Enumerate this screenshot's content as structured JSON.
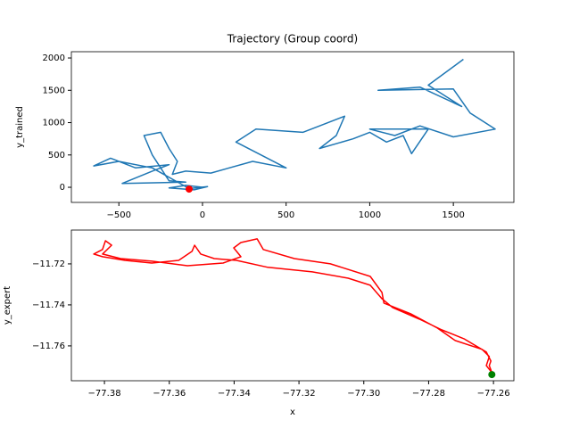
{
  "chart_data": [
    {
      "type": "line",
      "title": "Trajectory (Group coord)",
      "ylabel": "y_trained",
      "xlim": [
        -784,
        1862
      ],
      "ylim": [
        -234,
        2097
      ],
      "xticks": [
        {
          "value": -500,
          "label": "−500"
        },
        0,
        500,
        1000,
        1500
      ],
      "yticks": [
        0,
        500,
        1000,
        1500,
        2000
      ],
      "series": [
        {
          "color": "#1f77b4",
          "marker": "none",
          "x": [
            0,
            -100,
            -200,
            -50,
            30,
            -80,
            -300,
            -500,
            -650,
            -550,
            -400,
            -200,
            -300,
            -480,
            -100,
            -200,
            -300,
            -350,
            -250,
            -200,
            -150,
            -180,
            -100,
            50,
            300,
            500,
            200,
            320,
            600,
            700,
            850,
            800,
            700,
            900,
            1000,
            1100,
            1200,
            1250,
            1350,
            1000,
            1150,
            1300,
            1500,
            1750,
            1600,
            1500,
            1050,
            1300,
            1550,
            1350,
            1560
          ],
          "y": [
            0,
            30,
            -10,
            -40,
            10,
            -20,
            300,
            400,
            330,
            450,
            300,
            350,
            250,
            60,
            80,
            100,
            500,
            800,
            850,
            600,
            400,
            200,
            250,
            220,
            400,
            300,
            700,
            900,
            850,
            950,
            1100,
            800,
            600,
            750,
            850,
            700,
            800,
            520,
            900,
            900,
            800,
            950,
            780,
            900,
            1150,
            1520,
            1500,
            1550,
            1250,
            1580,
            1980
          ]
        },
        {
          "color": "#ff0000",
          "marker": "o",
          "x": [
            -80
          ],
          "y": [
            -28
          ]
        }
      ]
    },
    {
      "type": "line",
      "xlabel": "x",
      "ylabel": "y_expert",
      "xlim": [
        -77.3902,
        -77.2537
      ],
      "ylim": [
        -11.777,
        -11.7035
      ],
      "xticks": [
        {
          "value": -77.38,
          "label": "−77.38"
        },
        {
          "value": -77.36,
          "label": "−77.36"
        },
        {
          "value": -77.34,
          "label": "−77.34"
        },
        {
          "value": -77.32,
          "label": "−77.32"
        },
        {
          "value": -77.3,
          "label": "−77.30"
        },
        {
          "value": -77.28,
          "label": "−77.28"
        },
        {
          "value": -77.26,
          "label": "−77.26"
        }
      ],
      "yticks": [
        {
          "value": -11.72,
          "label": "−11.72"
        },
        {
          "value": -11.74,
          "label": "−11.74"
        },
        {
          "value": -11.76,
          "label": "−11.76"
        }
      ],
      "series": [
        {
          "color": "#ff0000",
          "marker": "none",
          "x": [
            -77.2605,
            -77.2613,
            -77.2608,
            -77.2622,
            -77.2691,
            -77.2759,
            -77.2828,
            -77.2911,
            -77.2944,
            -77.298,
            -77.3048,
            -77.3159,
            -77.3296,
            -77.3393,
            -77.3461,
            -77.3503,
            -77.3522,
            -77.353,
            -77.3571,
            -77.3654,
            -77.3737,
            -77.3806,
            -77.3833,
            -77.3806,
            -77.3797,
            -77.3778,
            -77.3806,
            -77.375,
            -77.3654,
            -77.3544,
            -77.3434,
            -77.3379,
            -77.3401,
            -77.3379,
            -77.3329,
            -77.331,
            -77.3214,
            -77.3103,
            -77.298,
            -77.2944,
            -77.2938,
            -77.2856,
            -77.2773,
            -77.2718,
            -77.2635,
            -77.2613,
            -77.2622,
            -77.2605
          ],
          "y": [
            -11.773,
            -11.7696,
            -11.7674,
            -11.763,
            -11.7565,
            -11.7522,
            -11.747,
            -11.7413,
            -11.737,
            -11.7304,
            -11.727,
            -11.7239,
            -11.7217,
            -11.7183,
            -11.7174,
            -11.7152,
            -11.7109,
            -11.7139,
            -11.7183,
            -11.7196,
            -11.7183,
            -11.7165,
            -11.7152,
            -11.713,
            -11.7087,
            -11.7109,
            -11.7152,
            -11.7174,
            -11.7187,
            -11.7209,
            -11.7196,
            -11.7165,
            -11.7122,
            -11.7096,
            -11.7078,
            -11.713,
            -11.7174,
            -11.72,
            -11.7261,
            -11.7339,
            -11.7391,
            -11.7443,
            -11.7513,
            -11.7574,
            -11.7617,
            -11.7652,
            -11.7696,
            -11.773
          ]
        },
        {
          "color": "#008000",
          "marker": "o",
          "x": [
            -77.2605
          ],
          "y": [
            -11.774
          ]
        }
      ]
    }
  ]
}
